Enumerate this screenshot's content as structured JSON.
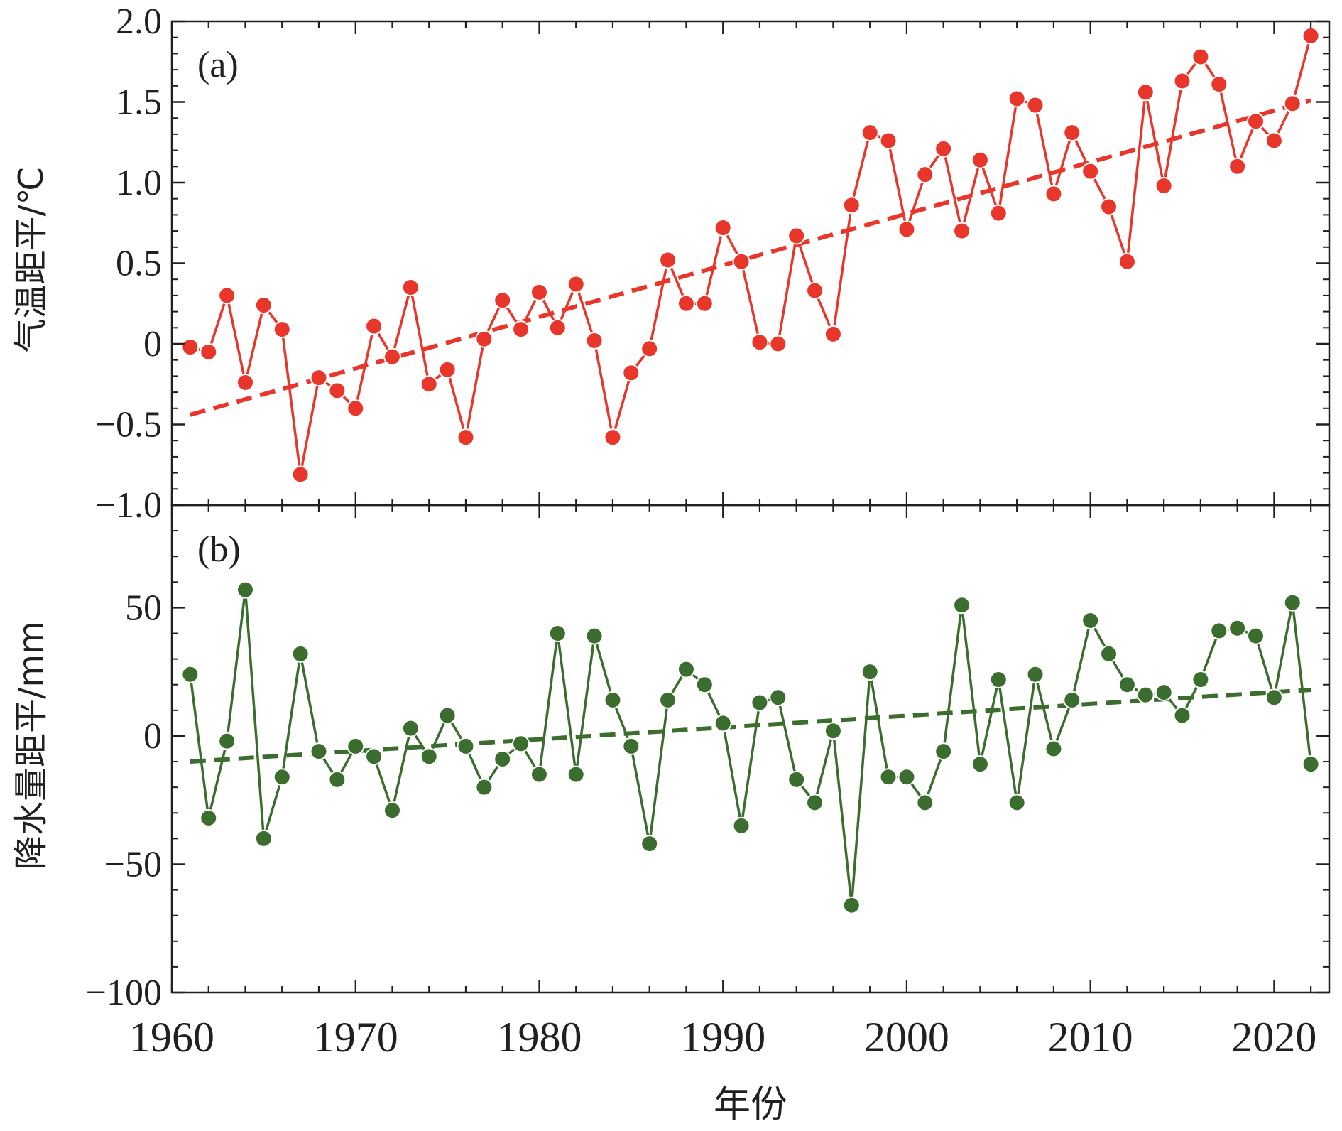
{
  "figure": {
    "xlabel": "年份",
    "x_ticks": [
      1960,
      1970,
      1980,
      1990,
      2000,
      2010,
      2020
    ],
    "x_tick_labels": [
      "1960",
      "1970",
      "1980",
      "1990",
      "2000",
      "2010",
      "2020"
    ],
    "xlim": [
      1960,
      2023
    ]
  },
  "chart_data": [
    {
      "type": "line",
      "panel_label": "(a)",
      "ylabel": "气温距平/℃",
      "ylim": [
        -1.0,
        2.0
      ],
      "y_ticks": [
        -1.0,
        -0.5,
        0,
        0.5,
        1.0,
        1.5,
        2.0
      ],
      "y_tick_labels": [
        "−1.0",
        "−0.5",
        "0",
        "0.5",
        "1.0",
        "1.5",
        "2.0"
      ],
      "color": "#e8362b",
      "x": [
        1961,
        1962,
        1963,
        1964,
        1965,
        1966,
        1967,
        1968,
        1969,
        1970,
        1971,
        1972,
        1973,
        1974,
        1975,
        1976,
        1977,
        1978,
        1979,
        1980,
        1981,
        1982,
        1983,
        1984,
        1985,
        1986,
        1987,
        1988,
        1989,
        1990,
        1991,
        1992,
        1993,
        1994,
        1995,
        1996,
        1997,
        1998,
        1999,
        2000,
        2001,
        2002,
        2003,
        2004,
        2005,
        2006,
        2007,
        2008,
        2009,
        2010,
        2011,
        2012,
        2013,
        2014,
        2015,
        2016,
        2017,
        2018,
        2019,
        2020,
        2021,
        2022
      ],
      "values": [
        -0.02,
        -0.05,
        0.3,
        -0.24,
        0.24,
        0.09,
        -0.81,
        -0.21,
        -0.29,
        -0.4,
        0.11,
        -0.08,
        0.35,
        -0.25,
        -0.16,
        -0.58,
        0.03,
        0.27,
        0.09,
        0.32,
        0.1,
        0.37,
        0.02,
        -0.58,
        -0.18,
        -0.03,
        0.52,
        0.25,
        0.25,
        0.72,
        0.51,
        0.01,
        0.0,
        0.67,
        0.33,
        0.06,
        0.86,
        1.31,
        1.26,
        0.71,
        1.05,
        1.21,
        0.7,
        1.14,
        0.81,
        1.52,
        1.48,
        0.93,
        1.31,
        1.07,
        0.85,
        0.51,
        1.56,
        0.98,
        1.63,
        1.78,
        1.61,
        1.1,
        1.38,
        1.26,
        1.49,
        1.91
      ],
      "trend": {
        "x": [
          1961,
          2022
        ],
        "y": [
          -0.44,
          1.51
        ]
      }
    },
    {
      "type": "line",
      "panel_label": "(b)",
      "ylabel": "降水量距平/mm",
      "ylim": [
        -100,
        90
      ],
      "y_ticks": [
        -100,
        -50,
        0,
        50
      ],
      "y_tick_labels": [
        "−100",
        "−50",
        "0",
        "50"
      ],
      "color": "#3b6e2e",
      "x": [
        1961,
        1962,
        1963,
        1964,
        1965,
        1966,
        1967,
        1968,
        1969,
        1970,
        1971,
        1972,
        1973,
        1974,
        1975,
        1976,
        1977,
        1978,
        1979,
        1980,
        1981,
        1982,
        1983,
        1984,
        1985,
        1986,
        1987,
        1988,
        1989,
        1990,
        1991,
        1992,
        1993,
        1994,
        1995,
        1996,
        1997,
        1998,
        1999,
        2000,
        2001,
        2002,
        2003,
        2004,
        2005,
        2006,
        2007,
        2008,
        2009,
        2010,
        2011,
        2012,
        2013,
        2014,
        2015,
        2016,
        2017,
        2018,
        2019,
        2020,
        2021,
        2022
      ],
      "values": [
        24,
        -32,
        -2,
        57,
        -40,
        -16,
        32,
        -6,
        -17,
        -4,
        -8,
        -29,
        3,
        -8,
        8,
        -4,
        -20,
        -9,
        -3,
        -15,
        40,
        -15,
        39,
        14,
        -4,
        -42,
        14,
        26,
        20,
        5,
        -35,
        13,
        15,
        -17,
        -26,
        2,
        -66,
        25,
        -16,
        -16,
        -26,
        -6,
        51,
        -11,
        22,
        -26,
        24,
        -5,
        14,
        45,
        32,
        20,
        16,
        17,
        8,
        22,
        41,
        42,
        39,
        15,
        52,
        -11
      ],
      "trend": {
        "x": [
          1961,
          2022
        ],
        "y": [
          -10,
          18
        ]
      }
    }
  ]
}
